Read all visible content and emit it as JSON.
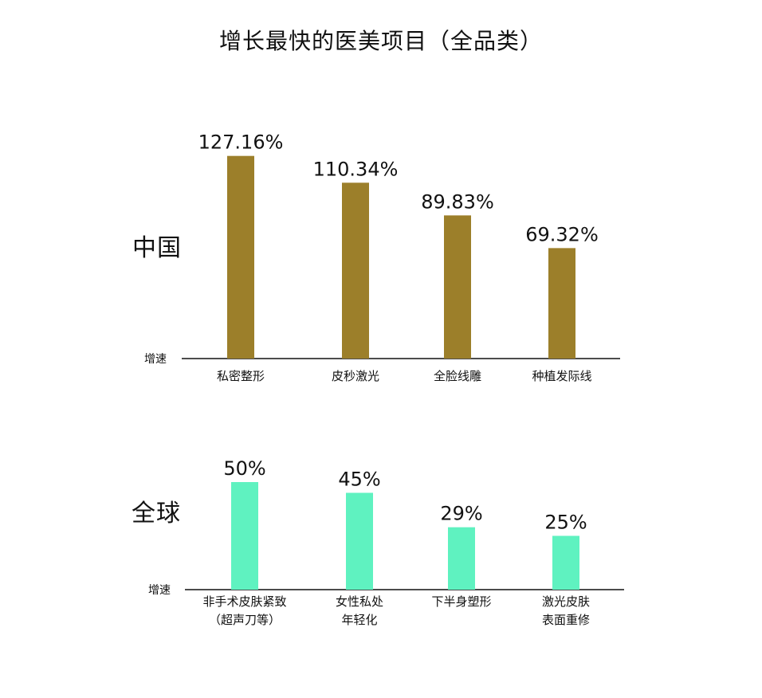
{
  "title": "增长最快的医美项目（全品类）",
  "colors": {
    "china_bar": "#9c7f2a",
    "global_bar": "#5ff2c0",
    "axis": "#111111",
    "text": "#111111"
  },
  "chart_data": [
    {
      "type": "bar",
      "region": "中国",
      "ylabel": "增速",
      "categories": [
        [
          "私密整形"
        ],
        [
          "皮秒激光"
        ],
        [
          "全脸线雕"
        ],
        [
          "种植发际线"
        ]
      ],
      "values": [
        127.16,
        110.34,
        89.83,
        69.32
      ],
      "value_labels": [
        "127.16%",
        "110.34%",
        "89.83%",
        "69.32%"
      ],
      "ylim": [
        0,
        140
      ],
      "grid": false,
      "legend": "none"
    },
    {
      "type": "bar",
      "region": "全球",
      "ylabel": "增速",
      "categories": [
        [
          "非手术皮肤紧致",
          "（超声刀等）"
        ],
        [
          "女性私处",
          "年轻化"
        ],
        [
          "下半身塑形"
        ],
        [
          "激光皮肤",
          "表面重修"
        ]
      ],
      "values": [
        50,
        45,
        29,
        25
      ],
      "value_labels": [
        "50%",
        "45%",
        "29%",
        "25%"
      ],
      "ylim": [
        0,
        60
      ],
      "grid": false,
      "legend": "none"
    }
  ]
}
